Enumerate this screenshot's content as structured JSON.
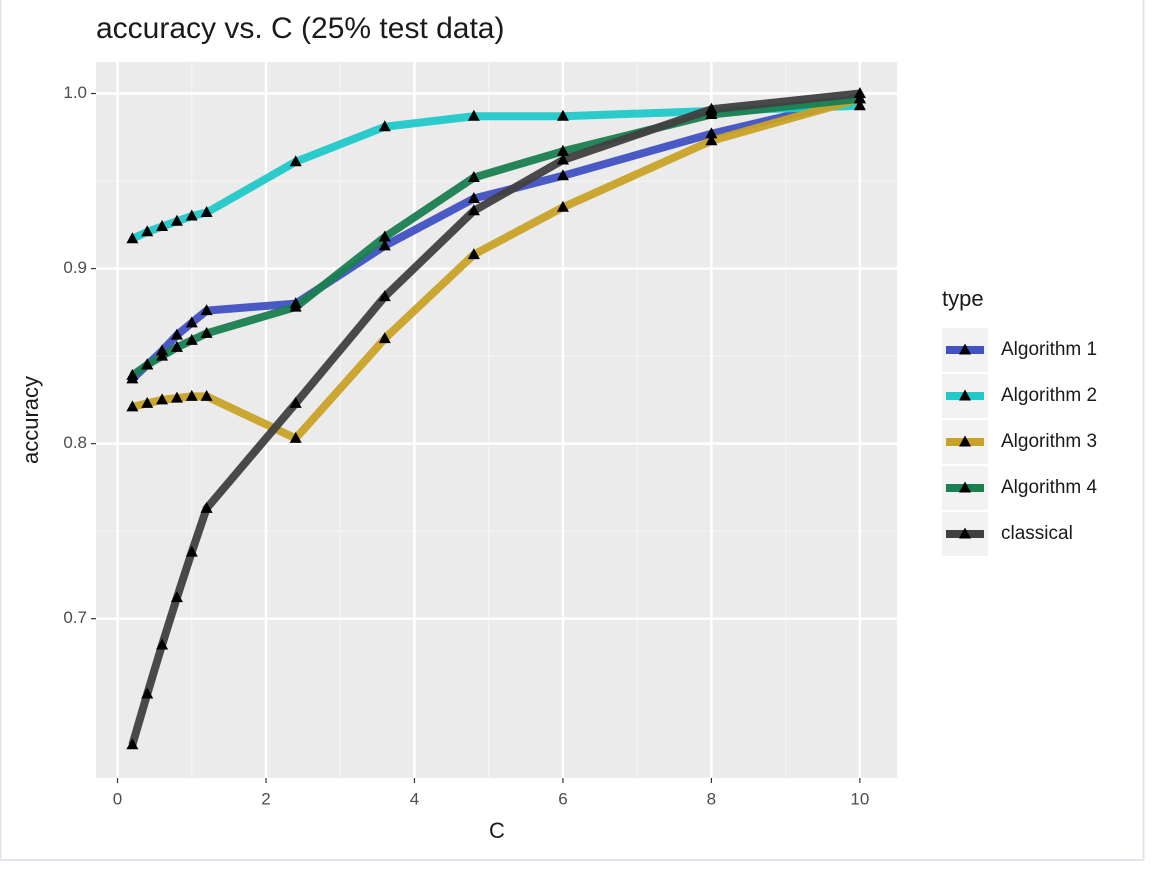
{
  "chart_data": {
    "type": "line",
    "title": "accuracy vs. C  (25% test data)",
    "x_label": "C",
    "y_label": "accuracy",
    "legend_title": "type",
    "legend_position": "right",
    "grid": true,
    "marker": "triangle",
    "x": [
      0.2,
      0.4,
      0.6,
      0.8,
      1.0,
      1.2,
      2.4,
      3.6,
      4.8,
      6,
      8,
      10
    ],
    "xlim": [
      -0.29,
      10.5
    ],
    "xticks": [
      0,
      2,
      4,
      6,
      8,
      10
    ],
    "ylim": [
      0.609,
      1.018
    ],
    "yticks": [
      {
        "value": 0.7,
        "label": "0.7"
      },
      {
        "value": 0.8,
        "label": "0.8"
      },
      {
        "value": 0.9,
        "label": "0.9"
      },
      {
        "value": 1.0,
        "label": "1.0"
      }
    ],
    "series": [
      {
        "name": "Algorithm 1",
        "color": "#4152c2",
        "values": [
          0.837,
          0.845,
          0.853,
          0.862,
          0.869,
          0.876,
          0.88,
          0.913,
          0.94,
          0.953,
          0.977,
          0.997
        ]
      },
      {
        "name": "Algorithm 2",
        "color": "#22c9c9",
        "values": [
          0.917,
          0.921,
          0.924,
          0.927,
          0.93,
          0.932,
          0.961,
          0.981,
          0.987,
          0.987,
          0.99,
          0.993
        ]
      },
      {
        "name": "Algorithm 3",
        "color": "#c9a227",
        "values": [
          0.821,
          0.823,
          0.825,
          0.826,
          0.827,
          0.827,
          0.803,
          0.86,
          0.908,
          0.935,
          0.973,
          0.997
        ]
      },
      {
        "name": "Algorithm 4",
        "color": "#1a8051",
        "values": [
          0.839,
          0.845,
          0.85,
          0.855,
          0.859,
          0.863,
          0.878,
          0.918,
          0.952,
          0.967,
          0.988,
          0.997
        ]
      },
      {
        "name": "classical",
        "color": "#404040",
        "values": [
          0.628,
          0.657,
          0.685,
          0.712,
          0.738,
          0.763,
          0.823,
          0.884,
          0.933,
          0.962,
          0.991,
          1.0
        ]
      }
    ]
  }
}
